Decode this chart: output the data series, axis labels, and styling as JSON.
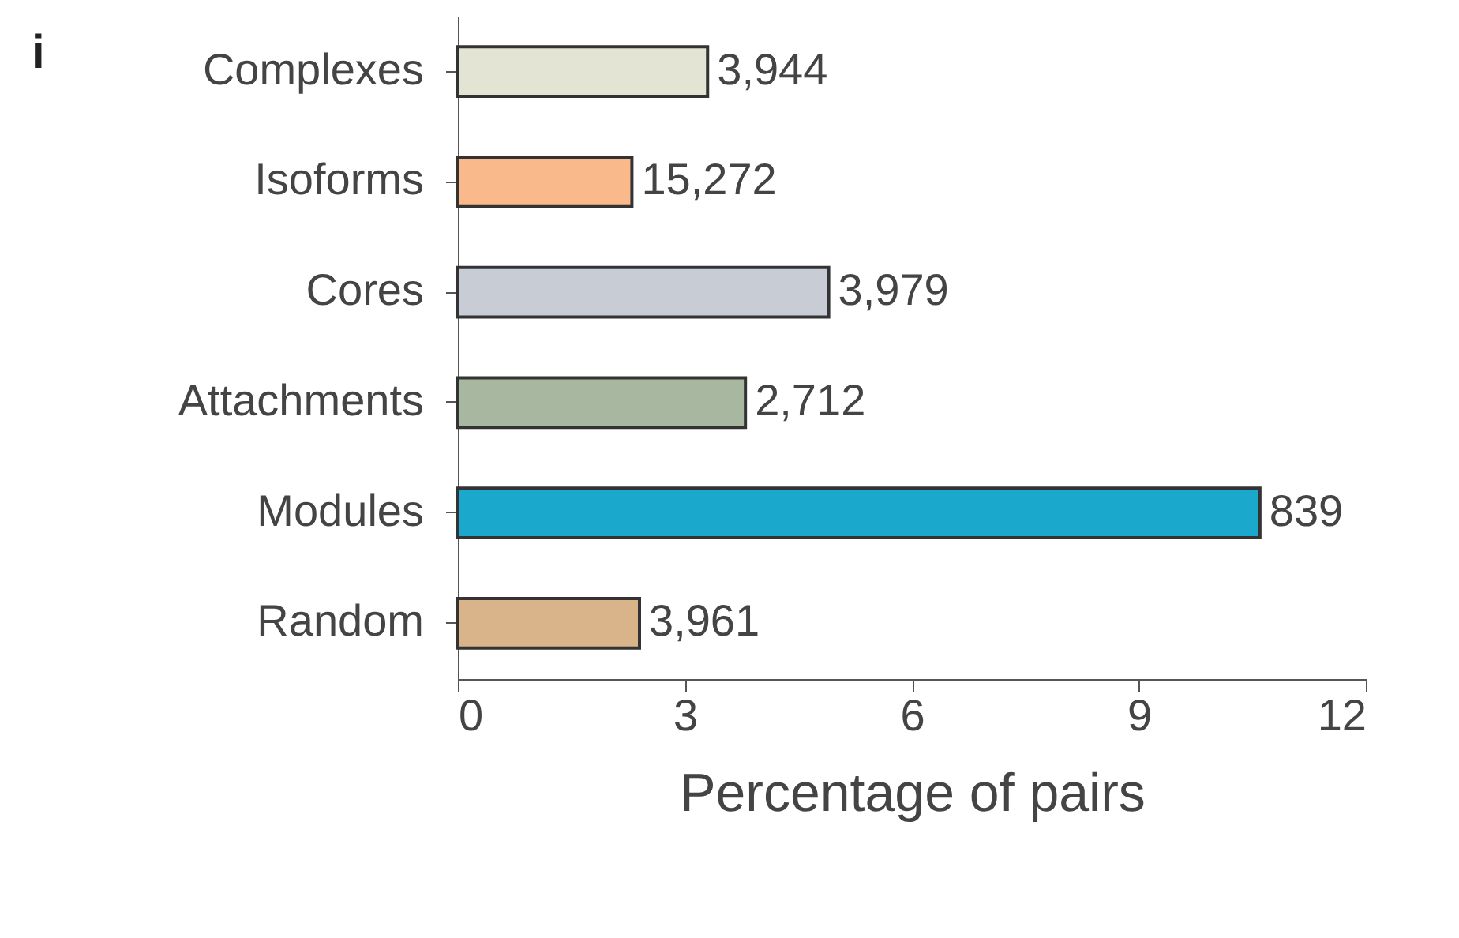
{
  "chart_data": {
    "type": "bar",
    "orientation": "horizontal",
    "categories": [
      "Complexes",
      "Isoforms",
      "Cores",
      "Attachments",
      "Modules",
      "Random"
    ],
    "values": [
      3.3,
      2.3,
      4.9,
      3.8,
      10.6,
      2.4
    ],
    "colors": [
      "#e4e4d4",
      "#f9b98a",
      "#c8ccd4",
      "#a8b8a0",
      "#1aa8cc",
      "#d9b48a"
    ],
    "xlim": [
      0,
      12
    ],
    "xticks": [
      0,
      3,
      6,
      9,
      12
    ],
    "xlabel": "Percentage of pairs",
    "annotations": [
      "i",
      {
        "text": "3,944",
        "x": 3.3,
        "y": "Complexes"
      },
      {
        "text": "15,272",
        "x": 2.3,
        "y": "Isoforms"
      },
      {
        "text": "3,979",
        "x": 4.9,
        "y": "Cores"
      },
      {
        "text": "2,712",
        "x": 3.8,
        "y": "Attachments"
      },
      {
        "text": "839",
        "x": 10.6,
        "y": "Modules"
      },
      {
        "text": "3,961",
        "x": 2.4,
        "y": "Random"
      }
    ],
    "grid": false,
    "legend": false
  }
}
